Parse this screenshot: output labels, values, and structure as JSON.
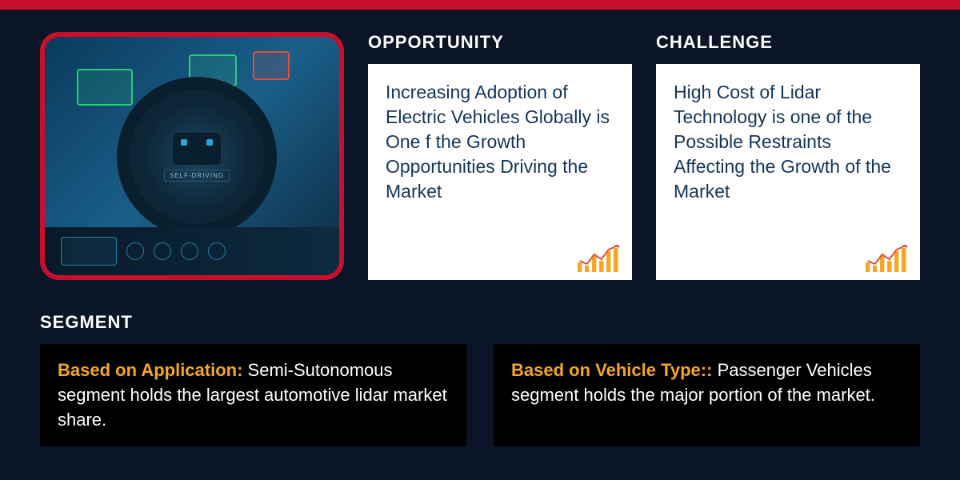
{
  "colors": {
    "background": "#0a1628",
    "accent_red": "#c8102e",
    "card_bg": "#ffffff",
    "card_text": "#12355b",
    "heading_text": "#ffffff",
    "segment_box_bg": "#000000",
    "segment_label": "#f5a623",
    "icon_orange": "#f5a623"
  },
  "opportunity": {
    "title": "OPPORTUNITY",
    "text": "Increasing Adoption of Electric Vehicles Globally is One f the Growth Opportunities Driving the Market"
  },
  "challenge": {
    "title": "CHALLENGE",
    "text": "High Cost of Lidar Technology is one of the Possible Restraints Affecting the Growth of the  Market"
  },
  "segment": {
    "title": "SEGMENT",
    "items": [
      {
        "label": "Based on Application: ",
        "text": "Semi-Sutonomous segment holds the largest automotive lidar market share."
      },
      {
        "label": "Based on Vehicle Type:: ",
        "text": "Passenger Vehicles segment holds the major portion of the market."
      }
    ]
  },
  "image_label": "SELF-DRIVING",
  "chart_icon": {
    "bars": [
      12,
      8,
      20,
      14,
      26,
      30
    ],
    "bar_color": "#f5a623",
    "line_color": "#e74c3c",
    "width": 54,
    "height": 34
  }
}
